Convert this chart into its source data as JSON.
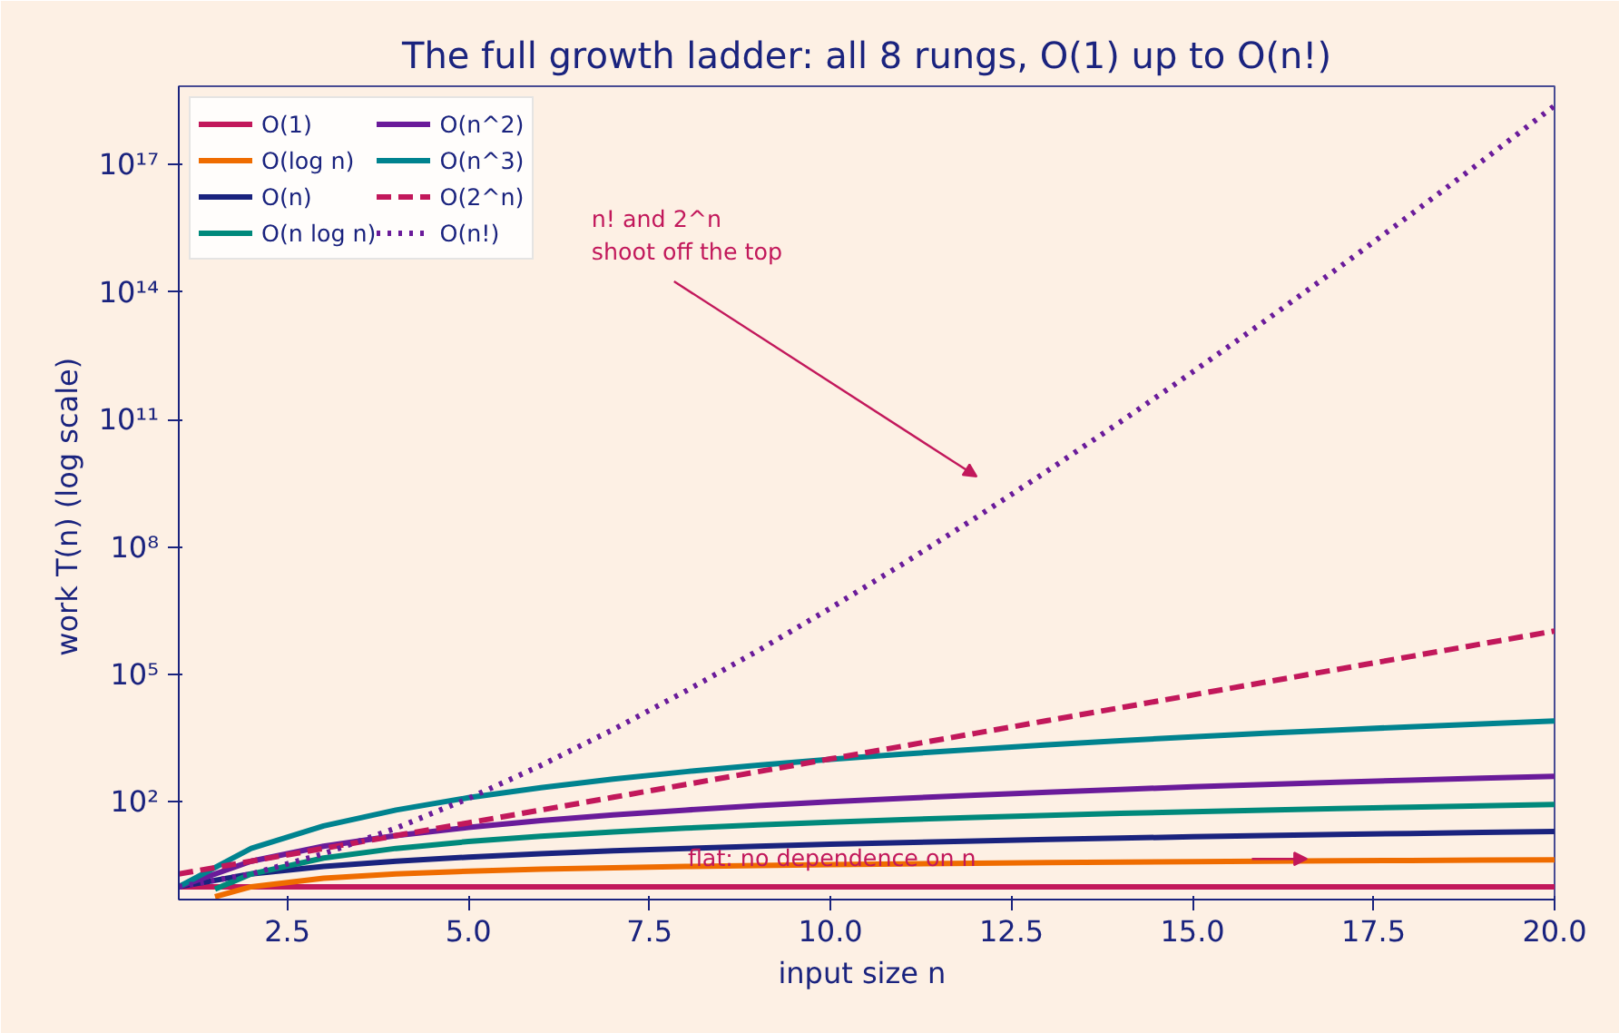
{
  "chart_data": {
    "type": "line",
    "title": "The full growth ladder: all 8 rungs, O(1) up to O(n!)",
    "xlabel": "input size  n",
    "ylabel": "work  T(n)   (log scale)",
    "log": "y",
    "grid": false,
    "legend": "top left",
    "marker": "none",
    "x": [
      1,
      2,
      3,
      4,
      5,
      6,
      7,
      8,
      9,
      10,
      11,
      12,
      13,
      14,
      15,
      16,
      17,
      18,
      19,
      20
    ],
    "xlim": [
      1,
      20
    ],
    "ylim": [
      0.5,
      7e+18
    ],
    "xticks": [
      2.5,
      {
        "value": 5,
        "label": "5.0"
      },
      7.5,
      {
        "value": 10,
        "label": "10.0"
      },
      12.5,
      {
        "value": 15,
        "label": "15.0"
      },
      17.5,
      {
        "value": 20,
        "label": "20.0"
      }
    ],
    "yticks": [
      {
        "value": 100,
        "label": "10²"
      },
      {
        "value": 100000,
        "label": "10⁵"
      },
      {
        "value": 100000000,
        "label": "10⁸"
      },
      {
        "value": 100000000000.0,
        "label": "10¹¹"
      },
      {
        "value": 100000000000000.0,
        "label": "10¹⁴"
      },
      {
        "value": 1e+17,
        "label": "10¹⁷"
      }
    ],
    "series": [
      {
        "name": "O(1)",
        "color": "#c2185b",
        "line_style": "solid",
        "values": [
          1,
          1,
          1,
          1,
          1,
          1,
          1,
          1,
          1,
          1,
          1,
          1,
          1,
          1,
          1,
          1,
          1,
          1,
          1,
          1
        ]
      },
      {
        "name": "O(log n)",
        "color": "#ef6c00",
        "line_style": "solid",
        "x": [
          1.5,
          2,
          3,
          4,
          5,
          6,
          7,
          8,
          9,
          10,
          11,
          12,
          13,
          14,
          15,
          16,
          17,
          18,
          19,
          20
        ],
        "values": [
          0.585,
          1,
          1.585,
          2,
          2.322,
          2.585,
          2.807,
          3,
          3.17,
          3.322,
          3.459,
          3.585,
          3.7,
          3.807,
          3.907,
          4,
          4.087,
          4.17,
          4.248,
          4.322
        ]
      },
      {
        "name": "O(n)",
        "color": "#1a237e",
        "line_style": "solid",
        "values": [
          1,
          2,
          3,
          4,
          5,
          6,
          7,
          8,
          9,
          10,
          11,
          12,
          13,
          14,
          15,
          16,
          17,
          18,
          19,
          20
        ]
      },
      {
        "name": "O(n log n)",
        "color": "#00897b",
        "line_style": "solid",
        "x": [
          1.5,
          2,
          3,
          4,
          5,
          6,
          7,
          8,
          9,
          10,
          11,
          12,
          13,
          14,
          15,
          16,
          17,
          18,
          19,
          20
        ],
        "values": [
          0.877,
          2,
          4.755,
          8,
          11.61,
          15.51,
          19.65,
          24,
          28.53,
          33.22,
          38.05,
          43.02,
          48.11,
          53.3,
          58.6,
          64,
          69.49,
          75.06,
          80.71,
          86.44
        ]
      },
      {
        "name": "O(n^2)",
        "color": "#6a1b9a",
        "line_style": "solid",
        "values": [
          1,
          4,
          9,
          16,
          25,
          36,
          49,
          64,
          81,
          100,
          121,
          144,
          169,
          196,
          225,
          256,
          289,
          324,
          361,
          400
        ]
      },
      {
        "name": "O(n^3)",
        "color": "#00838f",
        "line_style": "solid",
        "values": [
          1,
          8,
          27,
          64,
          125,
          216,
          343,
          512,
          729,
          1000,
          1331,
          1728,
          2197,
          2744,
          3375,
          4096,
          4913,
          5832,
          6859,
          8000
        ]
      },
      {
        "name": "O(2^n)",
        "color": "#c2185b",
        "line_style": "dashed",
        "values": [
          2,
          4,
          8,
          16,
          32,
          64,
          128,
          256,
          512,
          1024,
          2048,
          4096,
          8192,
          16384,
          32768,
          65536,
          131072,
          262144,
          524288,
          1048576
        ]
      },
      {
        "name": "O(n!)",
        "color": "#6a1b9a",
        "line_style": "dotted",
        "values": [
          1,
          2,
          6,
          24,
          120,
          720,
          5040,
          40320,
          362880,
          3628800,
          39916800,
          479001600,
          6227020800,
          87178291200,
          1307674368000,
          20922789888000,
          355687428096000,
          6402373705728000,
          121645100408832000,
          2432902008176640000
        ]
      }
    ],
    "annotations": [
      "n! and 2^n\nshoot off the top",
      "flat: no dependence on n"
    ]
  }
}
